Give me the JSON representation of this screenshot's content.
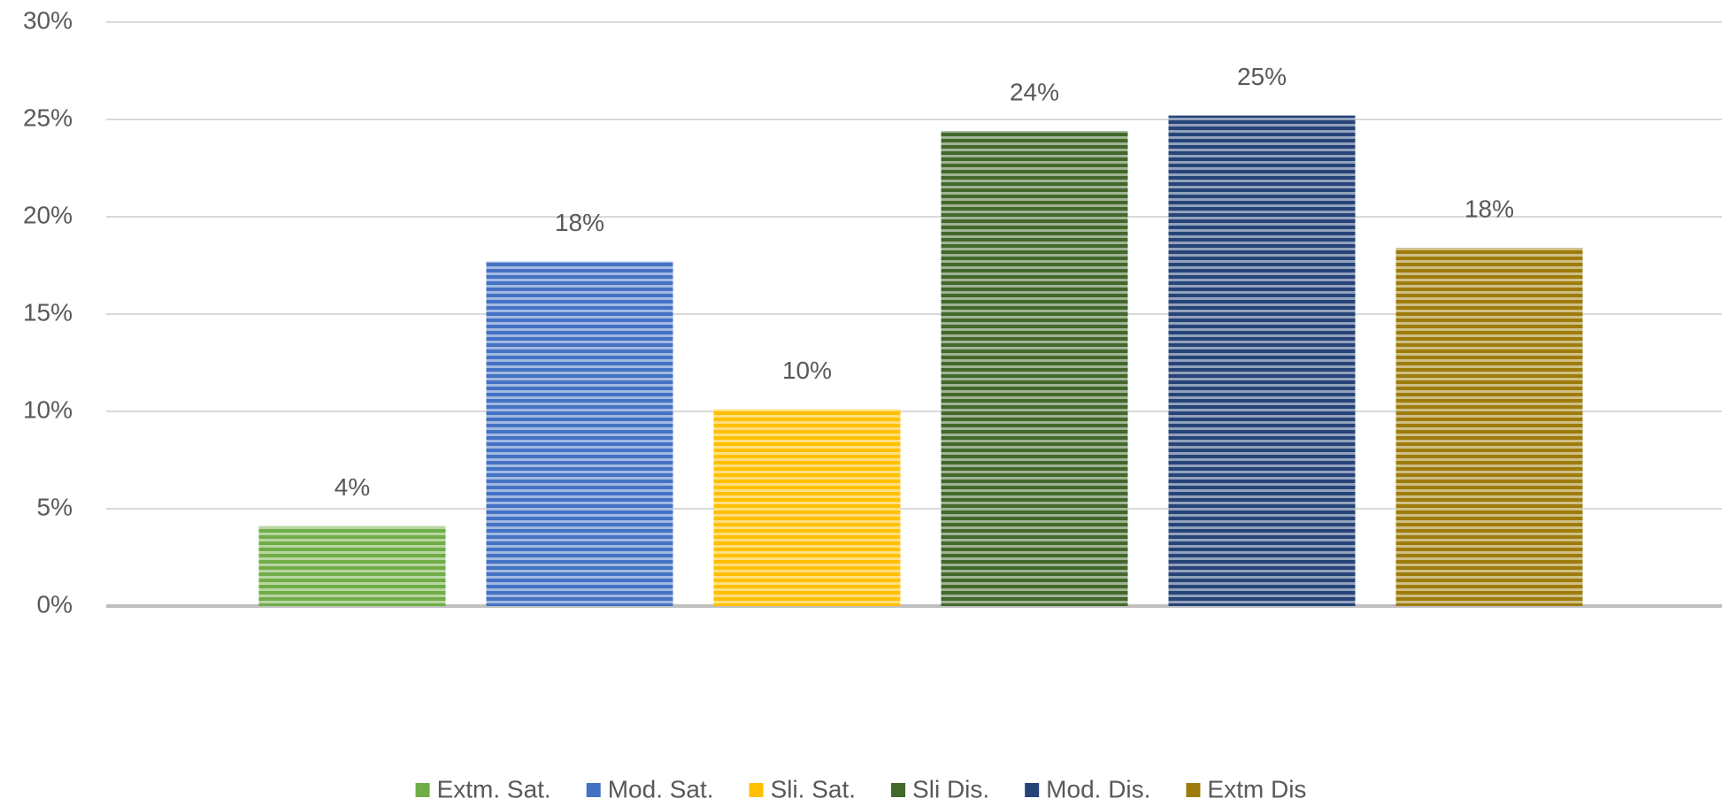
{
  "chart_data": {
    "type": "bar",
    "series": [
      {
        "name": "Extm. Sat.",
        "color": "#70ad47",
        "values": [
          4.1
        ],
        "value_labels": [
          "4%"
        ]
      },
      {
        "name": "Mod. Sat.",
        "color": "#4472c4",
        "values": [
          17.7
        ],
        "value_labels": [
          "18%"
        ]
      },
      {
        "name": "Sli. Sat.",
        "color": "#ffc000",
        "values": [
          10.1
        ],
        "value_labels": [
          "10%"
        ]
      },
      {
        "name": "Sli Dis.",
        "color": "#43682b",
        "values": [
          24.4
        ],
        "value_labels": [
          "24%"
        ]
      },
      {
        "name": "Mod. Dis.",
        "color": "#264478",
        "values": [
          25.2
        ],
        "value_labels": [
          "25%"
        ]
      },
      {
        "name": "Extm Dis",
        "color": "#9e7c0c",
        "values": [
          18.4
        ],
        "value_labels": [
          "18%"
        ]
      }
    ],
    "ylim": [
      0,
      30
    ],
    "yticks": [
      {
        "value": 0,
        "label": "0%"
      },
      {
        "value": 5,
        "label": "5%"
      },
      {
        "value": 10,
        "label": "10%"
      },
      {
        "value": 15,
        "label": "15%"
      },
      {
        "value": 20,
        "label": "20%"
      },
      {
        "value": 25,
        "label": "25%"
      },
      {
        "value": 30,
        "label": "30%"
      }
    ],
    "grid": true,
    "legend": "bottom"
  }
}
